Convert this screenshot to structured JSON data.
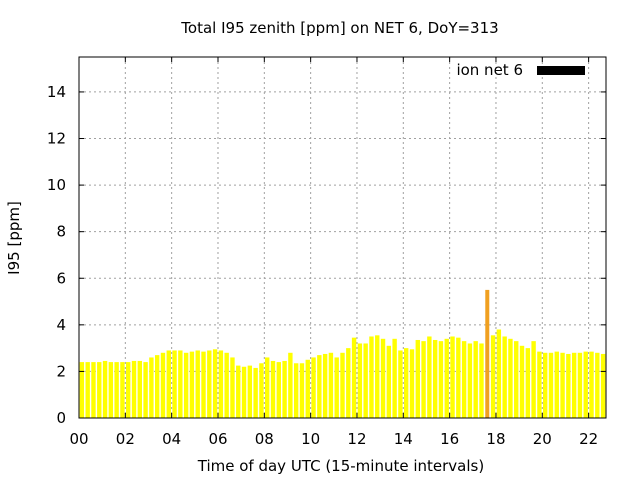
{
  "chart_data": {
    "type": "bar",
    "title": "Total I95 zenith [ppm] on NET 6, DoY=313",
    "xlabel": "Time of day UTC (15-minute intervals)",
    "ylabel": "I95 [ppm]",
    "legend": {
      "label": "ion net 6",
      "color": "#000000",
      "placement": "top-right"
    },
    "grid": true,
    "xlim": [
      0,
      22.75
    ],
    "ylim": [
      0,
      15.5
    ],
    "x_ticks": [
      "00",
      "02",
      "04",
      "06",
      "08",
      "10",
      "12",
      "14",
      "16",
      "18",
      "20",
      "22"
    ],
    "y_ticks": [
      "0",
      "2",
      "4",
      "6",
      "8",
      "10",
      "12",
      "14"
    ],
    "interval_hours": 0.25,
    "bar_color": "#ffff00",
    "highlight_color": "#f0a020",
    "highlight_index": 70,
    "values": [
      2.4,
      2.4,
      2.4,
      2.4,
      2.45,
      2.4,
      2.4,
      2.4,
      2.4,
      2.45,
      2.45,
      2.4,
      2.6,
      2.7,
      2.8,
      2.9,
      2.9,
      2.9,
      2.8,
      2.85,
      2.9,
      2.85,
      2.9,
      2.95,
      2.9,
      2.8,
      2.6,
      2.25,
      2.2,
      2.25,
      2.15,
      2.35,
      2.6,
      2.45,
      2.4,
      2.45,
      2.8,
      2.35,
      2.35,
      2.5,
      2.6,
      2.7,
      2.75,
      2.8,
      2.6,
      2.8,
      3.0,
      3.45,
      3.2,
      3.2,
      3.5,
      3.55,
      3.4,
      3.1,
      3.4,
      2.9,
      3.0,
      2.95,
      3.35,
      3.3,
      3.5,
      3.35,
      3.3,
      3.4,
      3.5,
      3.45,
      3.3,
      3.2,
      3.3,
      3.2,
      5.5,
      3.55,
      3.8,
      3.5,
      3.4,
      3.3,
      3.1,
      3.0,
      3.3,
      2.85,
      2.8,
      2.8,
      2.85,
      2.8,
      2.75,
      2.8,
      2.8,
      2.85,
      2.85,
      2.8,
      2.75
    ]
  }
}
